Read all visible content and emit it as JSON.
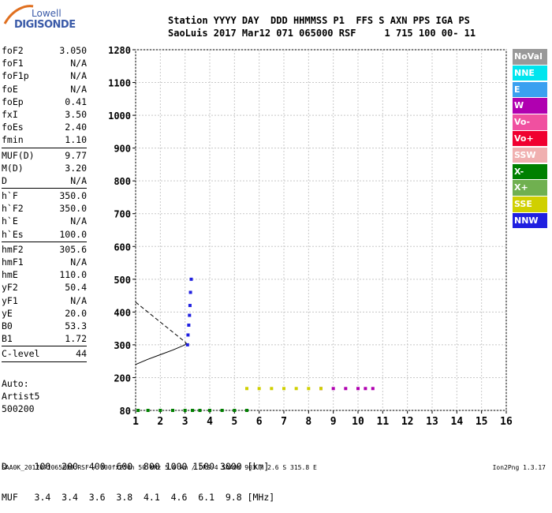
{
  "logo": {
    "line1": "Lowell",
    "line2": "DIGISONDE"
  },
  "header": {
    "line1": "Station YYYY DAY  DDD HHMMSS P1  FFS S AXN PPS IGA PS",
    "line2": "SaoLuis 2017 Mar12 071 065000 RSF     1 715 100 00- 11"
  },
  "params": [
    {
      "k": "foF2",
      "v": "3.050"
    },
    {
      "k": "foF1",
      "v": "N/A"
    },
    {
      "k": "foF1p",
      "v": "N/A"
    },
    {
      "k": "foE",
      "v": "N/A"
    },
    {
      "k": "foEp",
      "v": "0.41"
    },
    {
      "k": "fxI",
      "v": "3.50"
    },
    {
      "k": "foEs",
      "v": "2.40"
    },
    {
      "k": "fmin",
      "v": "1.10"
    }
  ],
  "params2": [
    {
      "k": "MUF(D)",
      "v": "9.77"
    },
    {
      "k": "M(D)",
      "v": "3.20"
    },
    {
      "k": "D",
      "v": "N/A"
    }
  ],
  "params3": [
    {
      "k": "h`F",
      "v": "350.0"
    },
    {
      "k": "h`F2",
      "v": "350.0"
    },
    {
      "k": "h`E",
      "v": "N/A"
    },
    {
      "k": "h`Es",
      "v": "100.0"
    }
  ],
  "params4": [
    {
      "k": "hmF2",
      "v": "305.6"
    },
    {
      "k": "hmF1",
      "v": "N/A"
    },
    {
      "k": "hmE",
      "v": "110.0"
    },
    {
      "k": "yF2",
      "v": "50.4"
    },
    {
      "k": "yF1",
      "v": "N/A"
    },
    {
      "k": "yE",
      "v": "20.0"
    },
    {
      "k": "B0",
      "v": "53.3"
    },
    {
      "k": "B1",
      "v": "1.72"
    }
  ],
  "params5": [
    {
      "k": "C-level",
      "v": "44"
    }
  ],
  "artist": {
    "l1": "Auto:",
    "l2": "Artist5",
    "l3": "500200"
  },
  "bottom_table": {
    "row1": "D     100  200  400  600  800 1000 1500 3000 [km]",
    "row2": "MUF   3.4  3.4  3.6  3.8  4.1  4.6  6.1  9.8 [MHz]"
  },
  "footer": "SAA0K_2017071065000.RSF / 300fx256h 50 kHz 5.0 km / DPS-4 SAA0K 903 / 2.6 S 315.8 E",
  "footer_right": "Ion2Png 1.3.17",
  "legend": [
    {
      "label": "NoVal",
      "color": "#999999"
    },
    {
      "label": "NNE",
      "color": "#00e5ee"
    },
    {
      "label": "E",
      "color": "#3aa0f0"
    },
    {
      "label": "W",
      "color": "#b000b0"
    },
    {
      "label": "Vo-",
      "color": "#f050a0"
    },
    {
      "label": "Vo+",
      "color": "#f00030"
    },
    {
      "label": "SSW",
      "color": "#f0b0b0"
    },
    {
      "label": "X-",
      "color": "#008000"
    },
    {
      "label": "X+",
      "color": "#70b050"
    },
    {
      "label": "SSE",
      "color": "#d0d000"
    },
    {
      "label": "NNW",
      "color": "#2020e0"
    }
  ],
  "chart_data": {
    "type": "scatter",
    "xlim": [
      1,
      16
    ],
    "x_ticks": [
      1,
      2,
      3,
      4,
      5,
      6,
      7,
      8,
      9,
      10,
      11,
      12,
      13,
      14,
      15,
      16
    ],
    "y_ticks": [
      80,
      200,
      300,
      400,
      500,
      600,
      700,
      800,
      900,
      1000,
      1100,
      1280
    ],
    "grid": true,
    "traces": [
      {
        "name": "Es trace",
        "color": "#008000",
        "points": [
          [
            1.1,
            80
          ],
          [
            1.5,
            80
          ],
          [
            2,
            80
          ],
          [
            2.5,
            80
          ],
          [
            3,
            80
          ],
          [
            3.3,
            80
          ],
          [
            3.6,
            80
          ],
          [
            4,
            80
          ],
          [
            4.5,
            80
          ],
          [
            5,
            80
          ],
          [
            5.5,
            80
          ]
        ]
      },
      {
        "name": "W band",
        "color": "#b000b0",
        "points": [
          [
            8.5,
            160
          ],
          [
            9,
            160
          ],
          [
            9.5,
            160
          ],
          [
            10,
            160
          ],
          [
            10.3,
            160
          ],
          [
            10.6,
            160
          ]
        ]
      },
      {
        "name": "SSE band",
        "color": "#d0d000",
        "points": [
          [
            5.5,
            160
          ],
          [
            6,
            160
          ],
          [
            6.5,
            160
          ],
          [
            7,
            160
          ],
          [
            7.5,
            160
          ],
          [
            8,
            160
          ],
          [
            8.5,
            160
          ]
        ]
      },
      {
        "name": "F trace",
        "color": "#2020e0",
        "points": [
          [
            3.1,
            300
          ],
          [
            3.12,
            330
          ],
          [
            3.15,
            360
          ],
          [
            3.18,
            390
          ],
          [
            3.2,
            420
          ],
          [
            3.22,
            460
          ],
          [
            3.25,
            500
          ]
        ]
      }
    ],
    "model_curve": [
      [
        1,
        240
      ],
      [
        1.5,
        256
      ],
      [
        2,
        270
      ],
      [
        2.5,
        284
      ],
      [
        3,
        300
      ],
      [
        3.05,
        305.6
      ]
    ]
  }
}
